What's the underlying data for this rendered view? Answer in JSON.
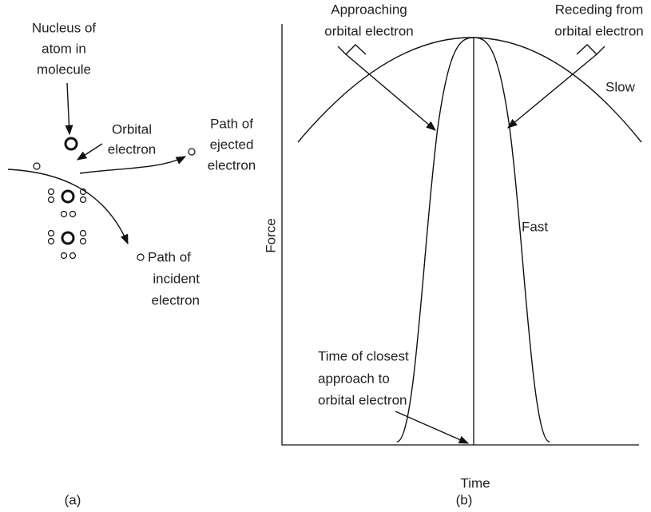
{
  "panel_a": {
    "nucleus_label": [
      "Nucleus of",
      "atom in",
      "molecule"
    ],
    "orbital_label": [
      "Orbital",
      "electron"
    ],
    "ejected_label": [
      "Path of",
      "ejected",
      "electron"
    ],
    "incident_label": [
      "Path of",
      "incident",
      "electron"
    ],
    "caption": "(a)"
  },
  "panel_b": {
    "y_axis_label": "Force",
    "x_axis_label": "Time",
    "approaching_label": [
      "Approaching",
      "orbital electron"
    ],
    "receding_label": [
      "Receding from",
      "orbital electron"
    ],
    "slow_label": "Slow",
    "fast_label": "Fast",
    "closest_label": [
      "Time of closest",
      "approach to",
      "orbital electron"
    ],
    "caption": "(b)"
  }
}
